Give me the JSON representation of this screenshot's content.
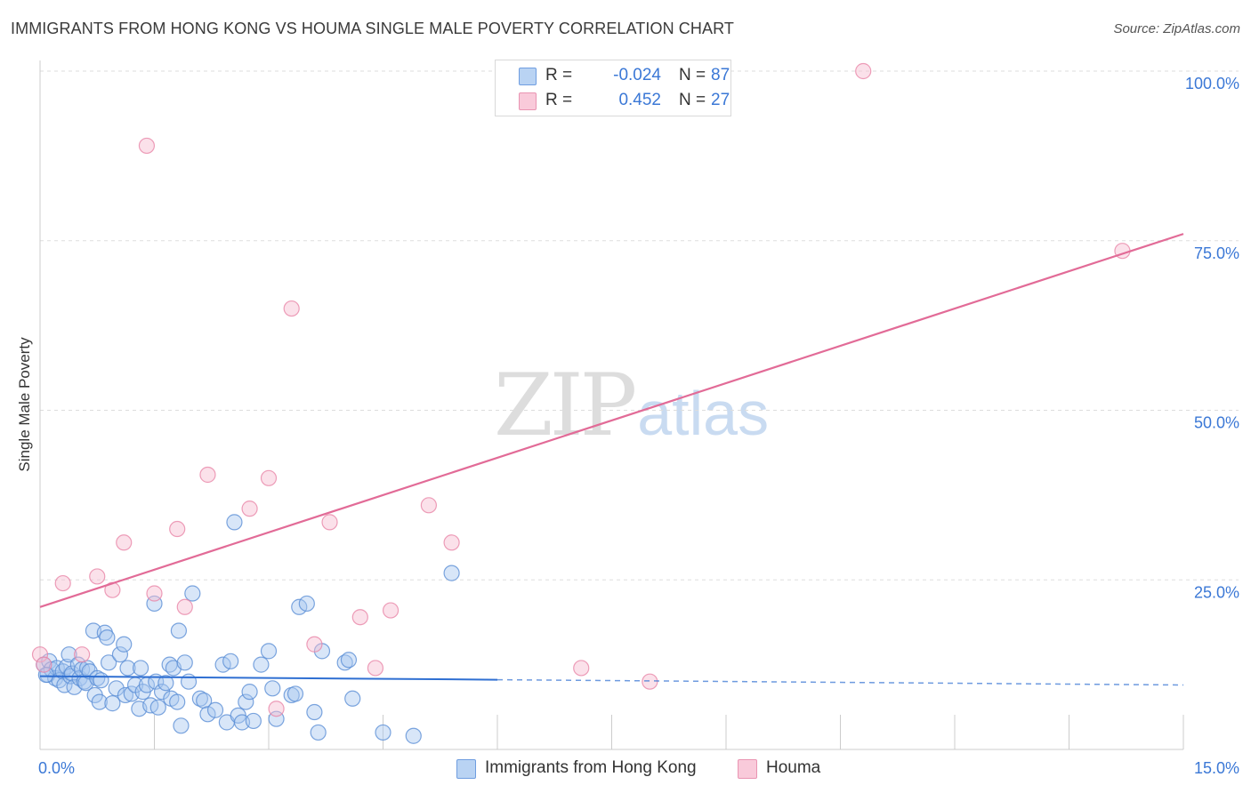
{
  "title": "IMMIGRANTS FROM HONG KONG VS HOUMA SINGLE MALE POVERTY CORRELATION CHART",
  "source": "Source: ZipAtlas.com",
  "watermark": {
    "zip": "ZIP",
    "atlas": "atlas"
  },
  "colors": {
    "blue_fill": "#a9c8f0",
    "blue_stroke": "#5b8fd6",
    "blue_line": "#2f6fd2",
    "pink_fill": "#f6bcd0",
    "pink_stroke": "#e986a8",
    "pink_line": "#e26b97",
    "grid": "#dddddd",
    "tick_text": "#3b78d6"
  },
  "legend": {
    "rows": [
      {
        "r_label": "R =",
        "r_value": "-0.024",
        "n_label": "N =",
        "n_value": "87"
      },
      {
        "r_label": "R =",
        "r_value": "0.452",
        "n_label": "N =",
        "n_value": "27"
      }
    ]
  },
  "bottom_legend": {
    "series1": "Immigrants from Hong Kong",
    "series2": "Houma"
  },
  "chart_data": {
    "type": "scatter",
    "xlabel": "",
    "ylabel": "Single Male Poverty",
    "xlim": [
      0,
      15
    ],
    "ylim": [
      0,
      102
    ],
    "x_tick_labels": [
      {
        "value": 0,
        "label": "0.0%"
      },
      {
        "value": 15,
        "label": "15.0%"
      }
    ],
    "y_tick_labels": [
      {
        "value": 25,
        "label": "25.0%"
      },
      {
        "value": 50,
        "label": "50.0%"
      },
      {
        "value": 75,
        "label": "75.0%"
      },
      {
        "value": 100,
        "label": "100.0%"
      }
    ],
    "series": [
      {
        "name": "Immigrants from Hong Kong",
        "color": "#a9c8f0",
        "trend": {
          "x0": 0,
          "y0": 10.8,
          "x1": 15,
          "y1": 9.5,
          "solid_until": 6.0
        },
        "points": [
          [
            0.05,
            12.5
          ],
          [
            0.1,
            11.0
          ],
          [
            0.12,
            13.0
          ],
          [
            0.15,
            11.8
          ],
          [
            0.2,
            10.5
          ],
          [
            0.22,
            12.0
          ],
          [
            0.25,
            10.2
          ],
          [
            0.3,
            11.5
          ],
          [
            0.32,
            9.5
          ],
          [
            0.35,
            12.2
          ],
          [
            0.38,
            14.0
          ],
          [
            0.4,
            10.8
          ],
          [
            0.42,
            11.2
          ],
          [
            0.45,
            9.2
          ],
          [
            0.5,
            12.5
          ],
          [
            0.52,
            10.5
          ],
          [
            0.55,
            11.8
          ],
          [
            0.58,
            10.0
          ],
          [
            0.6,
            9.8
          ],
          [
            0.62,
            12.0
          ],
          [
            0.65,
            11.5
          ],
          [
            0.7,
            17.5
          ],
          [
            0.72,
            8.0
          ],
          [
            0.75,
            10.5
          ],
          [
            0.78,
            7.0
          ],
          [
            0.8,
            10.2
          ],
          [
            0.85,
            17.2
          ],
          [
            0.88,
            16.5
          ],
          [
            0.9,
            12.8
          ],
          [
            0.95,
            6.8
          ],
          [
            1.0,
            9.0
          ],
          [
            1.05,
            14.0
          ],
          [
            1.1,
            15.5
          ],
          [
            1.12,
            8.0
          ],
          [
            1.15,
            12.0
          ],
          [
            1.2,
            8.2
          ],
          [
            1.25,
            9.5
          ],
          [
            1.3,
            6.0
          ],
          [
            1.32,
            12.0
          ],
          [
            1.35,
            8.5
          ],
          [
            1.4,
            9.5
          ],
          [
            1.45,
            6.5
          ],
          [
            1.5,
            21.5
          ],
          [
            1.52,
            10.0
          ],
          [
            1.55,
            6.2
          ],
          [
            1.6,
            8.5
          ],
          [
            1.65,
            9.8
          ],
          [
            1.7,
            12.5
          ],
          [
            1.72,
            7.5
          ],
          [
            1.75,
            12.0
          ],
          [
            1.8,
            7.0
          ],
          [
            1.82,
            17.5
          ],
          [
            1.85,
            3.5
          ],
          [
            1.9,
            12.8
          ],
          [
            1.95,
            10.0
          ],
          [
            2.0,
            23.0
          ],
          [
            2.1,
            7.5
          ],
          [
            2.15,
            7.2
          ],
          [
            2.2,
            5.2
          ],
          [
            2.3,
            5.8
          ],
          [
            2.4,
            12.5
          ],
          [
            2.45,
            4.0
          ],
          [
            2.5,
            13.0
          ],
          [
            2.55,
            33.5
          ],
          [
            2.6,
            5.0
          ],
          [
            2.65,
            4.0
          ],
          [
            2.7,
            7.0
          ],
          [
            2.75,
            8.5
          ],
          [
            2.8,
            4.2
          ],
          [
            2.9,
            12.5
          ],
          [
            3.0,
            14.5
          ],
          [
            3.05,
            9.0
          ],
          [
            3.1,
            4.5
          ],
          [
            3.3,
            8.0
          ],
          [
            3.35,
            8.2
          ],
          [
            3.4,
            21.0
          ],
          [
            3.5,
            21.5
          ],
          [
            3.6,
            5.5
          ],
          [
            3.65,
            2.5
          ],
          [
            3.7,
            14.5
          ],
          [
            4.0,
            12.8
          ],
          [
            4.05,
            13.2
          ],
          [
            4.1,
            7.5
          ],
          [
            4.5,
            2.5
          ],
          [
            4.9,
            2.0
          ],
          [
            5.4,
            26.0
          ],
          [
            0.08,
            11.0
          ]
        ]
      },
      {
        "name": "Houma",
        "color": "#f6bcd0",
        "trend": {
          "x0": 0,
          "y0": 21.0,
          "x1": 15,
          "y1": 76.0
        },
        "points": [
          [
            0.0,
            14.0
          ],
          [
            0.05,
            12.5
          ],
          [
            0.3,
            24.5
          ],
          [
            0.55,
            14.0
          ],
          [
            0.75,
            25.5
          ],
          [
            0.95,
            23.5
          ],
          [
            1.1,
            30.5
          ],
          [
            1.4,
            89.0
          ],
          [
            1.5,
            23.0
          ],
          [
            1.8,
            32.5
          ],
          [
            1.9,
            21.0
          ],
          [
            2.2,
            40.5
          ],
          [
            2.75,
            35.5
          ],
          [
            3.0,
            40.0
          ],
          [
            3.1,
            6.0
          ],
          [
            3.3,
            65.0
          ],
          [
            3.6,
            15.5
          ],
          [
            3.8,
            33.5
          ],
          [
            4.2,
            19.5
          ],
          [
            4.4,
            12.0
          ],
          [
            4.6,
            20.5
          ],
          [
            5.1,
            36.0
          ],
          [
            5.4,
            30.5
          ],
          [
            7.1,
            12.0
          ],
          [
            8.0,
            10.0
          ],
          [
            10.8,
            100.0
          ],
          [
            14.2,
            73.5
          ]
        ]
      }
    ]
  }
}
